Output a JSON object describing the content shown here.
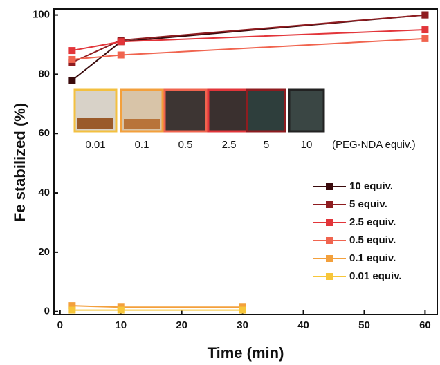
{
  "chart_data": {
    "type": "line",
    "xlabel": "Time (min)",
    "ylabel": "Fe stabilized (%)",
    "xlim": [
      -1,
      62
    ],
    "ylim": [
      -1,
      102
    ],
    "xticks": [
      0,
      10,
      20,
      30,
      40,
      50,
      60
    ],
    "yticks": [
      0,
      20,
      40,
      60,
      80,
      100
    ],
    "legend": "lower right",
    "series": [
      {
        "name": "10 equiv.",
        "color": "#3a0a0c",
        "x": [
          2,
          10,
          60
        ],
        "values": [
          78,
          91,
          100
        ]
      },
      {
        "name": "5 equiv.",
        "color": "#8e1c20",
        "x": [
          2,
          10,
          60
        ],
        "values": [
          84,
          91.5,
          100
        ]
      },
      {
        "name": "2.5 equiv.",
        "color": "#e2353a",
        "x": [
          2,
          10,
          60
        ],
        "values": [
          88,
          91,
          95
        ]
      },
      {
        "name": "0.5 equiv.",
        "color": "#f0644f",
        "x": [
          2,
          10,
          60
        ],
        "values": [
          85,
          86.5,
          92
        ]
      },
      {
        "name": "0.1 equiv.",
        "color": "#f3a03c",
        "x": [
          2,
          10,
          30
        ],
        "values": [
          2,
          1.5,
          1.5
        ]
      },
      {
        "name": "0.01 equiv.",
        "color": "#f7c63a",
        "x": [
          2,
          10,
          30
        ],
        "values": [
          0.5,
          0.5,
          0.5
        ]
      }
    ],
    "inset_labels": [
      "0.01",
      "0.1",
      "0.5",
      "2.5",
      "5",
      "10"
    ],
    "inset_note": "(PEG-NDA equiv.)"
  }
}
